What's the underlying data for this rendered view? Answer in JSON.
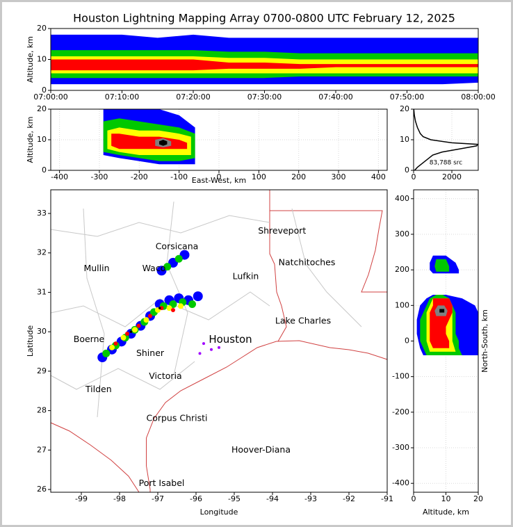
{
  "chart_data": [
    {
      "type": "range",
      "title": "Houston Lightning Mapping Array 0700-0800 UTC February 12, 2025",
      "ylabel": "Altitude, km",
      "xlim": [
        0,
        60
      ],
      "ylim": [
        0,
        20
      ],
      "yticks": [
        0,
        10,
        20
      ],
      "xticks": [
        {
          "value": 0,
          "label": "07:00:00"
        },
        {
          "value": 10,
          "label": "07:10:00"
        },
        {
          "value": 20,
          "label": "07:20:00"
        },
        {
          "value": 30,
          "label": "07:30:00"
        },
        {
          "value": 40,
          "label": "07:40:00"
        },
        {
          "value": 50,
          "label": "07:50:00"
        },
        {
          "value": 60,
          "label": "08:00:00"
        }
      ],
      "grid": false,
      "series": [
        {
          "color": "#0000ff",
          "x": [
            0,
            5,
            10,
            15,
            20,
            25,
            30,
            35,
            40,
            45,
            50,
            55,
            60
          ],
          "low": [
            2,
            2,
            2,
            2,
            2,
            2,
            2,
            2,
            2,
            2,
            2,
            2,
            2.5
          ],
          "high": [
            18,
            18,
            18,
            17,
            18,
            17,
            17,
            17,
            17,
            17,
            17,
            17,
            17
          ]
        },
        {
          "color": "#00c800",
          "x": [
            0,
            5,
            10,
            15,
            20,
            25,
            30,
            35,
            40,
            45,
            50,
            55,
            60
          ],
          "low": [
            4,
            4,
            4,
            4,
            4,
            4,
            4,
            4.5,
            4.5,
            4.5,
            4.5,
            4.5,
            4.5
          ],
          "high": [
            13,
            13,
            13,
            13,
            13,
            12.5,
            12.5,
            12,
            12,
            12,
            12,
            12,
            12
          ]
        },
        {
          "color": "#ffff00",
          "x": [
            0,
            5,
            10,
            15,
            20,
            25,
            30,
            35,
            40,
            45,
            50,
            55,
            60
          ],
          "low": [
            5.5,
            5.5,
            5.5,
            5.5,
            5.5,
            5.5,
            5.5,
            5.5,
            5.5,
            5.5,
            5.5,
            5.5,
            5.5
          ],
          "high": [
            11,
            11,
            11,
            11,
            11,
            10.5,
            10.5,
            10,
            10,
            10,
            10,
            10,
            10
          ]
        },
        {
          "color": "#ff0000",
          "x": [
            0,
            5,
            10,
            15,
            20,
            25,
            30,
            35,
            40,
            45,
            50,
            55,
            60
          ],
          "low": [
            6.5,
            6.5,
            6.5,
            6.5,
            6.5,
            7,
            7,
            7,
            7.5,
            7.5,
            7.5,
            7.5,
            7.5
          ],
          "high": [
            10,
            10,
            10,
            10,
            10,
            9,
            9,
            8.5,
            8.5,
            8.5,
            8.5,
            8.5,
            8.5
          ]
        }
      ]
    },
    {
      "type": "range",
      "xlabel": "East-West, km",
      "ylabel": "Altitude, km",
      "xlim": [
        -422,
        422
      ],
      "ylim": [
        0,
        20
      ],
      "xticks": [
        -400,
        -300,
        -200,
        -100,
        0,
        100,
        200,
        300,
        400
      ],
      "yticks": [
        0,
        10,
        20
      ],
      "grid": true,
      "series": [
        {
          "color": "#0000ff",
          "x": [
            -290,
            -250,
            -200,
            -150,
            -100,
            -60
          ],
          "low": [
            5,
            4,
            3,
            2,
            2,
            2
          ],
          "high": [
            20,
            20,
            20,
            20,
            18,
            14
          ]
        },
        {
          "color": "#00c800",
          "x": [
            -290,
            -250,
            -200,
            -150,
            -100,
            -60
          ],
          "low": [
            6,
            5,
            4,
            3,
            3,
            4
          ],
          "high": [
            16,
            17,
            16,
            15,
            14,
            12
          ]
        },
        {
          "color": "#ffff00",
          "x": [
            -280,
            -250,
            -200,
            -150,
            -100,
            -70
          ],
          "low": [
            7,
            6,
            5,
            5,
            5,
            5
          ],
          "high": [
            13,
            14,
            13,
            13,
            12,
            11
          ]
        },
        {
          "color": "#ff0000",
          "x": [
            -270,
            -250,
            -200,
            -150,
            -100,
            -80
          ],
          "low": [
            8,
            7,
            7,
            7,
            7,
            7
          ],
          "high": [
            12,
            12,
            11,
            11,
            10,
            9
          ]
        },
        {
          "color": "#808080",
          "x": [
            -160,
            -140,
            -120
          ],
          "low": [
            8,
            7.5,
            8
          ],
          "high": [
            10,
            10.5,
            9.5
          ]
        },
        {
          "color": "#000000",
          "x": [
            -150,
            -140,
            -130
          ],
          "low": [
            8.5,
            8,
            8.5
          ],
          "high": [
            9.5,
            10,
            9.5
          ]
        }
      ]
    },
    {
      "type": "line",
      "annotation": "83,788 src",
      "xlim": [
        0,
        3380
      ],
      "ylim": [
        0,
        20
      ],
      "xticks": [
        0,
        2000
      ],
      "yticks": [
        0,
        10,
        20
      ],
      "grid": true,
      "color": "#000000",
      "y": [
        0,
        1,
        2,
        3,
        4,
        5,
        6,
        7,
        8,
        8.5,
        9,
        10,
        11,
        12,
        14,
        16,
        18,
        20
      ],
      "values": [
        50,
        200,
        400,
        600,
        800,
        1000,
        1500,
        2400,
        3300,
        3350,
        2000,
        900,
        500,
        350,
        200,
        100,
        40,
        10
      ]
    },
    {
      "type": "scatter",
      "xlabel": "Longitude",
      "ylabel": "Latitude",
      "xlim": [
        -99.8,
        -91
      ],
      "ylim": [
        25.93,
        33.6
      ],
      "xticks": [
        -99,
        -98,
        -97,
        -96,
        -95,
        -94,
        -93,
        -92,
        -91
      ],
      "yticks": [
        26,
        27,
        28,
        29,
        30,
        31,
        32,
        33
      ],
      "grid": false,
      "series": [
        {
          "color": "#0000ff",
          "x": [
            -98.45,
            -98.2,
            -97.95,
            -97.7,
            -97.45,
            -97.2,
            -96.95,
            -96.7,
            -96.45,
            -96.2,
            -95.95,
            -96.9,
            -96.6,
            -96.3
          ],
          "values": [
            29.35,
            29.55,
            29.75,
            29.95,
            30.15,
            30.4,
            30.7,
            30.8,
            30.85,
            30.8,
            30.9,
            31.55,
            31.75,
            31.95
          ]
        },
        {
          "color": "#00c800",
          "x": [
            -98.35,
            -98.1,
            -97.85,
            -97.6,
            -97.35,
            -97.1,
            -96.85,
            -96.6,
            -96.35,
            -96.1,
            -96.75,
            -96.45
          ],
          "values": [
            29.45,
            29.65,
            29.85,
            30.05,
            30.25,
            30.5,
            30.65,
            30.7,
            30.75,
            30.7,
            31.65,
            31.85
          ]
        },
        {
          "color": "#ffff00",
          "x": [
            -98.2,
            -97.9,
            -97.6,
            -97.3,
            -97.0,
            -96.7,
            -96.4
          ],
          "values": [
            29.6,
            29.85,
            30.05,
            30.3,
            30.55,
            30.6,
            30.65
          ]
        },
        {
          "color": "#ff0000",
          "x": [
            -98.1,
            -97.8,
            -97.5,
            -97.2,
            -96.9,
            -96.6
          ],
          "values": [
            29.7,
            29.95,
            30.15,
            30.4,
            30.6,
            30.55
          ]
        },
        {
          "color": "#000000",
          "x": [
            -97.7,
            -96.95
          ],
          "values": [
            30.0,
            30.6
          ]
        },
        {
          "color": "#a000ff",
          "x": [
            -95.8,
            -95.6,
            -95.4,
            -95.9
          ],
          "values": [
            29.7,
            29.55,
            29.6,
            29.45
          ]
        }
      ],
      "places": [
        {
          "name": "Shreveport",
          "lon": -93.75,
          "lat": 32.55
        },
        {
          "name": "Corsicana",
          "lon": -96.5,
          "lat": 32.15
        },
        {
          "name": "Mullin",
          "lon": -98.6,
          "lat": 31.6,
          "color": "#f08a4b"
        },
        {
          "name": "Waco",
          "lon": -97.1,
          "lat": 31.6
        },
        {
          "name": "Natchitoches",
          "lon": -93.1,
          "lat": 31.75
        },
        {
          "name": "Lufkin",
          "lon": -94.7,
          "lat": 31.4
        },
        {
          "name": "Houston",
          "lon": -95.1,
          "lat": 29.8,
          "color": "#f5a623"
        },
        {
          "name": "Boerne",
          "lon": -98.8,
          "lat": 29.8
        },
        {
          "name": "Lake Charles",
          "lon": -93.2,
          "lat": 30.27
        },
        {
          "name": "Shiner",
          "lon": -97.2,
          "lat": 29.45
        },
        {
          "name": "Victoria",
          "lon": -96.8,
          "lat": 28.87
        },
        {
          "name": "Tilden",
          "lon": -98.55,
          "lat": 28.53
        },
        {
          "name": "Corpus Christi",
          "lon": -96.5,
          "lat": 27.8
        },
        {
          "name": "Hoover-Diana",
          "lon": -94.3,
          "lat": 27.0,
          "color": "#1010e0"
        },
        {
          "name": "Port Isabel",
          "lon": -96.9,
          "lat": 26.15
        }
      ]
    },
    {
      "type": "range",
      "orientation": "horizontal",
      "xlabel": "Altitude, km",
      "ylabel": "North-South, km",
      "xlim": [
        0,
        20
      ],
      "ylim": [
        -425,
        425
      ],
      "xticks": [
        0,
        10,
        20
      ],
      "yticks": [
        -400,
        -300,
        -200,
        -100,
        0,
        100,
        200,
        300,
        400
      ],
      "grid": true,
      "series": [
        {
          "color": "#0000ff",
          "y": [
            -40,
            -20,
            0,
            20,
            40,
            60,
            80,
            100,
            120,
            130
          ],
          "low": [
            3,
            2,
            1.5,
            1,
            1,
            1,
            1.5,
            2,
            4,
            6
          ],
          "high": [
            20,
            20,
            20,
            20,
            20,
            20,
            20,
            19,
            15,
            10
          ]
        },
        {
          "color": "#0000ff",
          "y": [
            190,
            200,
            220,
            240
          ],
          "low": [
            6,
            5,
            5,
            6
          ],
          "high": [
            14,
            14,
            13,
            10
          ]
        },
        {
          "color": "#00c800",
          "y": [
            -40,
            -20,
            0,
            20,
            40,
            60,
            80,
            100,
            120,
            130
          ],
          "low": [
            4,
            3,
            2,
            2,
            2,
            2,
            3,
            4,
            5,
            7
          ],
          "high": [
            15,
            14,
            14,
            13,
            13,
            13,
            13,
            12,
            11,
            9
          ]
        },
        {
          "color": "#00c800",
          "y": [
            195,
            210,
            230
          ],
          "low": [
            7,
            6.5,
            7
          ],
          "high": [
            11,
            11,
            10
          ]
        },
        {
          "color": "#ffff00",
          "y": [
            -30,
            0,
            20,
            40,
            60,
            80,
            100,
            120
          ],
          "low": [
            5,
            4,
            4,
            4,
            4,
            4,
            5,
            6
          ],
          "high": [
            13,
            12,
            12,
            12,
            12,
            12,
            12,
            11
          ]
        },
        {
          "color": "#ff0000",
          "y": [
            -20,
            0,
            20,
            40,
            60,
            80,
            100,
            120
          ],
          "low": [
            6,
            5,
            5,
            5,
            5,
            5,
            6,
            6
          ],
          "high": [
            11,
            11,
            10,
            10,
            11,
            12,
            12,
            11
          ]
        },
        {
          "color": "#808080",
          "y": [
            70,
            85,
            100
          ],
          "low": [
            7,
            6.5,
            7.5
          ],
          "high": [
            10,
            10.5,
            9.5
          ]
        },
        {
          "color": "#000000",
          "y": [
            80,
            90
          ],
          "low": [
            8,
            8
          ],
          "high": [
            9.5,
            9.5
          ]
        }
      ]
    }
  ]
}
